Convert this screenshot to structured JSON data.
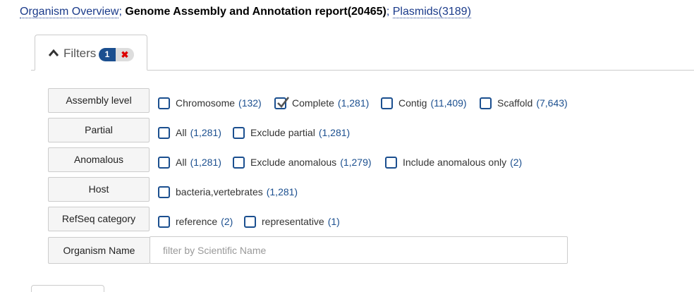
{
  "breadcrumb": {
    "organism_overview": "Organism Overview",
    "sep1": ";",
    "report": "Genome Assembly and Annotation report(20465)",
    "sep2": ";",
    "plasmids": "Plasmids(3189)"
  },
  "filters_tab": {
    "label": "Filters",
    "badge_count": "1",
    "badge_clear": "✖"
  },
  "rows": {
    "assembly_level": {
      "label": "Assembly level",
      "options": [
        {
          "name": "Chromosome",
          "count": "(132)",
          "checked": false
        },
        {
          "name": "Complete",
          "count": "(1,281)",
          "checked": true
        },
        {
          "name": "Contig",
          "count": "(11,409)",
          "checked": false
        },
        {
          "name": "Scaffold",
          "count": "(7,643)",
          "checked": false
        }
      ]
    },
    "partial": {
      "label": "Partial",
      "options": [
        {
          "name": "All",
          "count": "(1,281)",
          "checked": false
        },
        {
          "name": "Exclude partial",
          "count": "(1,281)",
          "checked": false
        }
      ]
    },
    "anomalous": {
      "label": "Anomalous",
      "options": [
        {
          "name": "All",
          "count": "(1,281)",
          "checked": false
        },
        {
          "name": "Exclude anomalous",
          "count": "(1,279)",
          "checked": false
        },
        {
          "name": "Include anomalous only",
          "count": "(2)",
          "checked": false
        }
      ]
    },
    "host": {
      "label": "Host",
      "options": [
        {
          "name": "bacteria,vertebrates",
          "count": "(1,281)",
          "checked": false
        }
      ]
    },
    "refseq_category": {
      "label": "RefSeq category",
      "options": [
        {
          "name": "reference",
          "count": "(2)",
          "checked": false
        },
        {
          "name": "representative",
          "count": "(1)",
          "checked": false
        }
      ]
    },
    "organism_name": {
      "label": "Organism Name",
      "placeholder": "filter by Scientific Name",
      "value": ""
    }
  },
  "colors": {
    "link": "#1a3a8a",
    "accent": "#1b4f8f",
    "badge_clear": "#dd0000"
  }
}
